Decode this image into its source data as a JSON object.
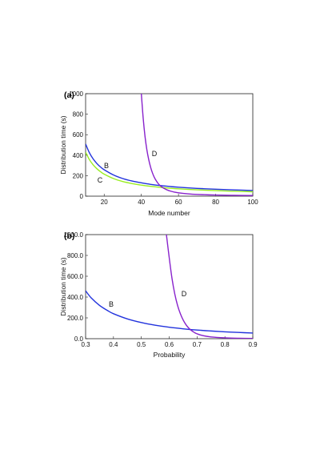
{
  "chart_data": [
    {
      "panel": "(a)",
      "type": "line",
      "xlabel": "Mode number",
      "ylabel": "Distribution time (s)",
      "xlim": [
        10,
        100
      ],
      "ylim": [
        0,
        1000
      ],
      "xticks": [
        20,
        40,
        60,
        80,
        100
      ],
      "yticks": [
        0,
        200,
        400,
        600,
        800,
        1000
      ],
      "grid": false,
      "series": [
        {
          "name": "B",
          "color": "#2233dd",
          "x": [
            10,
            12,
            14,
            16,
            18,
            20,
            25,
            30,
            35,
            40,
            45,
            50,
            55,
            60,
            70,
            80,
            90,
            100
          ],
          "y": [
            510,
            425,
            365,
            320,
            285,
            258,
            207,
            172,
            148,
            130,
            115,
            104,
            95,
            87,
            76,
            68,
            61,
            55
          ]
        },
        {
          "name": "C",
          "color": "#99ee22",
          "x": [
            10,
            12,
            14,
            16,
            18,
            20,
            25,
            30,
            35,
            40,
            45,
            50,
            55,
            60,
            70,
            80,
            90,
            100
          ],
          "y": [
            430,
            358,
            307,
            269,
            239,
            215,
            172,
            143,
            123,
            108,
            96,
            86,
            78,
            72,
            62,
            54,
            48,
            43
          ]
        },
        {
          "name": "D",
          "color": "#8822cc",
          "x": [
            40,
            41,
            42,
            43,
            44,
            45,
            46,
            47,
            48,
            49,
            50,
            51,
            52,
            54,
            56,
            58,
            60,
            65,
            70,
            80,
            90,
            100
          ],
          "y": [
            1000,
            760,
            580,
            450,
            355,
            282,
            226,
            183,
            151,
            125,
            105,
            90,
            78,
            60,
            48,
            39,
            33,
            23,
            17,
            11,
            8,
            6
          ]
        }
      ]
    },
    {
      "panel": "(b)",
      "type": "line",
      "xlabel": "Probability",
      "ylabel": "Distribution time (s)",
      "xlim": [
        0.3,
        0.9
      ],
      "ylim": [
        0,
        1000
      ],
      "xticks": [
        0.3,
        0.4,
        0.5,
        0.6,
        0.7,
        0.8,
        0.9
      ],
      "yticks": [
        0,
        200,
        400,
        600,
        800,
        1000
      ],
      "grid": false,
      "series": [
        {
          "name": "B",
          "color": "#2233dd",
          "x": [
            0.3,
            0.32,
            0.35,
            0.38,
            0.4,
            0.45,
            0.5,
            0.55,
            0.6,
            0.65,
            0.7,
            0.75,
            0.8,
            0.85,
            0.9
          ],
          "y": [
            460,
            392,
            320,
            268,
            240,
            190,
            155,
            129,
            110,
            95,
            83,
            74,
            66,
            60,
            54
          ]
        },
        {
          "name": "D",
          "color": "#8822cc",
          "x": [
            0.59,
            0.6,
            0.61,
            0.62,
            0.63,
            0.64,
            0.65,
            0.66,
            0.67,
            0.68,
            0.69,
            0.7,
            0.72,
            0.75,
            0.8,
            0.85,
            0.9
          ],
          "y": [
            1000,
            780,
            580,
            430,
            320,
            240,
            180,
            135,
            102,
            78,
            60,
            47,
            30,
            17,
            8,
            4,
            2
          ]
        }
      ]
    }
  ]
}
